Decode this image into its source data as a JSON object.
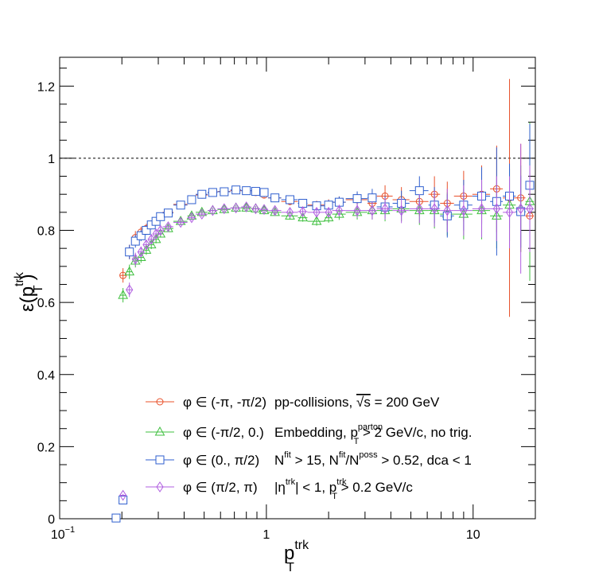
{
  "chart_data": {
    "type": "scatter",
    "title": "",
    "xscale": "log",
    "xlim": [
      0.1,
      20
    ],
    "ylim": [
      0,
      1.28
    ],
    "grid": false,
    "reference_line": {
      "y": 1.0,
      "style": "dashed"
    },
    "xlabel": {
      "base": "p",
      "sup": "trk",
      "sub": "T"
    },
    "ylabel": {
      "pre": "ε(p",
      "sup": "trk",
      "sub": "T",
      "post": ")"
    },
    "x_ticks": [
      {
        "value": 0.1,
        "base": "10",
        "exp": "−1"
      },
      {
        "value": 1,
        "base": "1",
        "exp": ""
      },
      {
        "value": 10,
        "base": "10",
        "exp": ""
      }
    ],
    "y_ticks": [
      {
        "value": 0,
        "label": "0"
      },
      {
        "value": 0.2,
        "label": "0.2"
      },
      {
        "value": 0.4,
        "label": "0.4"
      },
      {
        "value": 0.6,
        "label": "0.6"
      },
      {
        "value": 0.8,
        "label": "0.8"
      },
      {
        "value": 1.0,
        "label": "1"
      },
      {
        "value": 1.2,
        "label": "1.2"
      }
    ],
    "annotations": [
      {
        "segments": [
          {
            "t": "pp-collisions, "
          },
          {
            "t": "√s",
            "overline": true
          },
          {
            "t": " = 200 GeV"
          }
        ]
      },
      {
        "segments": [
          {
            "t": "Embedding, p"
          },
          {
            "t": "parton",
            "sup": true
          },
          {
            "t": "T",
            "sub": true
          },
          {
            "t": " > 2 GeV/c, no trig."
          }
        ]
      },
      {
        "segments": [
          {
            "t": "N"
          },
          {
            "t": "fit",
            "sup": true
          },
          {
            "t": " > 15, N"
          },
          {
            "t": "fit",
            "sup": true
          },
          {
            "t": "/N"
          },
          {
            "t": "poss",
            "sup": true
          },
          {
            "t": " > 0.52, dca < 1"
          }
        ]
      },
      {
        "segments": [
          {
            "t": "|η"
          },
          {
            "t": "trk",
            "sup": true
          },
          {
            "t": "| < 1, p"
          },
          {
            "t": "trk",
            "sup": true
          },
          {
            "t": "T",
            "sub": true
          },
          {
            "t": " > 0.2 GeV/c"
          }
        ]
      }
    ],
    "x": [
      0.1875,
      0.2025,
      0.2175,
      0.2325,
      0.2475,
      0.2625,
      0.2775,
      0.2925,
      0.3075,
      0.335,
      0.385,
      0.435,
      0.4875,
      0.55,
      0.625,
      0.7125,
      0.8,
      0.8875,
      0.975,
      1.1,
      1.3,
      1.5,
      1.75,
      2.0,
      2.25,
      2.75,
      3.25,
      3.75,
      4.5,
      5.5,
      6.5,
      7.5,
      9.0,
      11.0,
      13.0,
      15.0,
      17.0,
      18.8
    ],
    "x_err": [
      [
        0.18,
        0.195
      ],
      [
        0.195,
        0.21
      ],
      [
        0.21,
        0.225
      ],
      [
        0.225,
        0.24
      ],
      [
        0.24,
        0.255
      ],
      [
        0.255,
        0.27
      ],
      [
        0.27,
        0.285
      ],
      [
        0.285,
        0.3
      ],
      [
        0.3,
        0.315
      ],
      [
        0.315,
        0.355
      ],
      [
        0.355,
        0.415
      ],
      [
        0.415,
        0.455
      ],
      [
        0.455,
        0.52
      ],
      [
        0.52,
        0.58
      ],
      [
        0.58,
        0.67
      ],
      [
        0.67,
        0.755
      ],
      [
        0.755,
        0.845
      ],
      [
        0.845,
        0.93
      ],
      [
        0.93,
        1.02
      ],
      [
        1.02,
        1.18
      ],
      [
        1.18,
        1.42
      ],
      [
        1.42,
        1.58
      ],
      [
        1.58,
        1.92
      ],
      [
        1.92,
        2.08
      ],
      [
        2.08,
        2.42
      ],
      [
        2.42,
        3.08
      ],
      [
        3.08,
        3.42
      ],
      [
        3.42,
        4.08
      ],
      [
        4.08,
        4.92
      ],
      [
        4.92,
        6.08
      ],
      [
        6.08,
        6.92
      ],
      [
        6.92,
        8.08
      ],
      [
        8.08,
        9.92
      ],
      [
        9.92,
        12.08
      ],
      [
        12.08,
        13.92
      ],
      [
        13.92,
        16.08
      ],
      [
        16.08,
        17.92
      ],
      [
        17.92,
        19.68
      ]
    ],
    "series": [
      {
        "name": "φ ∈ (-π, -π/2)",
        "color": "#e8502a",
        "marker": "circle",
        "y": [
          null,
          0.675,
          0.74,
          0.78,
          0.795,
          0.805,
          0.815,
          0.825,
          0.838,
          0.85,
          0.872,
          0.885,
          0.898,
          0.905,
          0.908,
          0.91,
          0.91,
          0.905,
          0.898,
          0.89,
          0.88,
          0.875,
          0.87,
          0.872,
          0.878,
          0.885,
          0.875,
          0.895,
          0.885,
          0.88,
          0.9,
          0.875,
          0.895,
          0.9,
          0.915,
          0.89,
          0.89,
          0.84
        ],
        "err": [
          null,
          0.02,
          0.02,
          0.018,
          0.015,
          0.013,
          0.012,
          0.011,
          0.01,
          0.009,
          0.008,
          0.008,
          0.007,
          0.007,
          0.007,
          0.007,
          0.007,
          0.007,
          0.008,
          0.009,
          0.01,
          0.011,
          0.012,
          0.014,
          0.016,
          0.02,
          0.025,
          0.03,
          0.035,
          0.04,
          0.05,
          0.06,
          0.07,
          0.08,
          0.12,
          0.33,
          0.15,
          0.12
        ]
      },
      {
        "name": "φ ∈ (-π/2, 0.)",
        "color": "#3fbf3f",
        "marker": "triangle",
        "y": [
          null,
          0.62,
          0.685,
          0.715,
          0.725,
          0.745,
          0.76,
          0.775,
          0.79,
          0.805,
          0.825,
          0.84,
          0.85,
          0.855,
          0.858,
          0.862,
          0.862,
          0.86,
          0.855,
          0.85,
          0.84,
          0.835,
          0.825,
          0.835,
          0.845,
          0.85,
          0.855,
          0.855,
          0.86,
          0.855,
          0.855,
          0.845,
          0.845,
          0.855,
          0.84,
          0.87,
          0.86,
          0.88
        ],
        "err": [
          null,
          0.02,
          0.02,
          0.018,
          0.015,
          0.013,
          0.012,
          0.011,
          0.01,
          0.009,
          0.008,
          0.008,
          0.007,
          0.007,
          0.007,
          0.007,
          0.007,
          0.007,
          0.008,
          0.009,
          0.01,
          0.011,
          0.012,
          0.014,
          0.016,
          0.02,
          0.025,
          0.03,
          0.035,
          0.04,
          0.05,
          0.06,
          0.07,
          0.08,
          0.09,
          0.1,
          0.12,
          0.22
        ]
      },
      {
        "name": "φ ∈ (0., π/2)",
        "color": "#2f5fcf",
        "marker": "square",
        "y": [
          0.002,
          0.052,
          0.74,
          0.77,
          0.785,
          0.8,
          0.815,
          0.825,
          0.838,
          0.848,
          0.87,
          0.885,
          0.9,
          0.905,
          0.907,
          0.912,
          0.91,
          0.908,
          0.905,
          0.89,
          0.885,
          0.875,
          0.868,
          0.87,
          0.878,
          0.888,
          0.89,
          0.865,
          0.875,
          0.91,
          0.87,
          0.84,
          0.87,
          0.895,
          0.88,
          0.895,
          0.852,
          0.925
        ],
        "err": [
          0.002,
          0.004,
          0.02,
          0.018,
          0.015,
          0.013,
          0.012,
          0.011,
          0.01,
          0.009,
          0.008,
          0.008,
          0.007,
          0.007,
          0.007,
          0.007,
          0.007,
          0.007,
          0.008,
          0.009,
          0.01,
          0.011,
          0.012,
          0.014,
          0.016,
          0.02,
          0.025,
          0.03,
          0.035,
          0.04,
          0.05,
          0.06,
          0.07,
          0.08,
          0.15,
          0.09,
          0.1,
          0.17
        ]
      },
      {
        "name": "φ ∈ (π/2, π)",
        "color": "#b05fe0",
        "marker": "diamond",
        "y": [
          null,
          0.065,
          0.635,
          0.72,
          0.74,
          0.76,
          0.775,
          0.79,
          0.8,
          0.81,
          0.822,
          0.835,
          0.845,
          0.855,
          0.86,
          0.862,
          0.865,
          0.86,
          0.858,
          0.855,
          0.85,
          0.852,
          0.85,
          0.85,
          0.855,
          0.855,
          0.855,
          0.86,
          0.855,
          0.86,
          0.86,
          0.855,
          0.855,
          0.86,
          0.86,
          0.85,
          0.86,
          0.86
        ],
        "err": [
          null,
          0.004,
          0.02,
          0.018,
          0.015,
          0.013,
          0.012,
          0.011,
          0.01,
          0.009,
          0.008,
          0.008,
          0.007,
          0.007,
          0.007,
          0.007,
          0.007,
          0.007,
          0.008,
          0.009,
          0.01,
          0.011,
          0.012,
          0.014,
          0.016,
          0.02,
          0.025,
          0.03,
          0.035,
          0.04,
          0.05,
          0.06,
          0.07,
          0.08,
          0.09,
          0.1,
          0.18,
          0.12
        ]
      }
    ]
  }
}
